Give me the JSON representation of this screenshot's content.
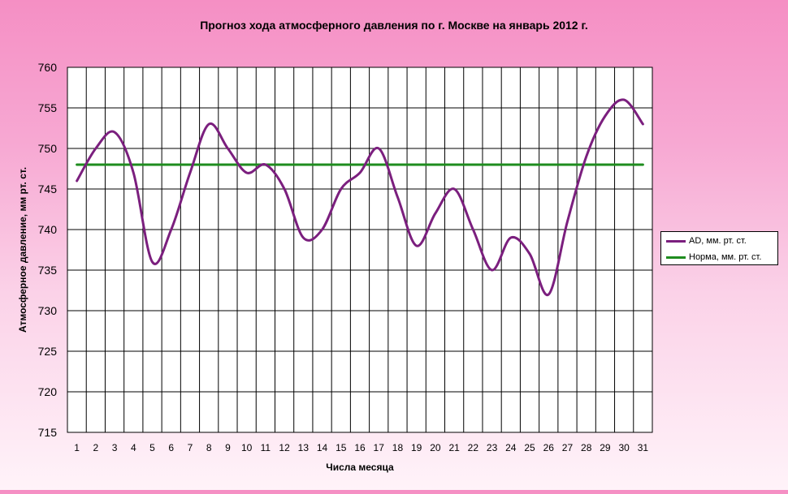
{
  "chart_data": {
    "type": "line",
    "title": "Прогноз хода атмосферного давления по г. Москве на январь 2012 г.",
    "xlabel": "Числа месяца",
    "ylabel": "Атмосферное давление, мм рт. ст.",
    "ylim": [
      715,
      760
    ],
    "yticks": [
      "715",
      "720",
      "725",
      "730",
      "735",
      "740",
      "745",
      "750",
      "755",
      "760"
    ],
    "categories": [
      "1",
      "2",
      "3",
      "4",
      "5",
      "6",
      "7",
      "8",
      "9",
      "10",
      "11",
      "12",
      "13",
      "14",
      "15",
      "16",
      "17",
      "18",
      "19",
      "20",
      "21",
      "22",
      "23",
      "24",
      "25",
      "26",
      "27",
      "28",
      "29",
      "30",
      "31"
    ],
    "grid": true,
    "legend_position": "right",
    "series": [
      {
        "name": "AD, мм. рт. ст.",
        "color": "#7b1f7e",
        "values": [
          746,
          750,
          752,
          747,
          736,
          740,
          747,
          753,
          750,
          747,
          748,
          745,
          739,
          740,
          745,
          747,
          750,
          744,
          738,
          742,
          745,
          740,
          735,
          739,
          737,
          732,
          741,
          749,
          754,
          756,
          753
        ]
      },
      {
        "name": "Норма, мм. рт. ст.",
        "color": "#1e8c1e",
        "values": [
          748,
          748,
          748,
          748,
          748,
          748,
          748,
          748,
          748,
          748,
          748,
          748,
          748,
          748,
          748,
          748,
          748,
          748,
          748,
          748,
          748,
          748,
          748,
          748,
          748,
          748,
          748,
          748,
          748,
          748,
          748
        ]
      }
    ]
  }
}
